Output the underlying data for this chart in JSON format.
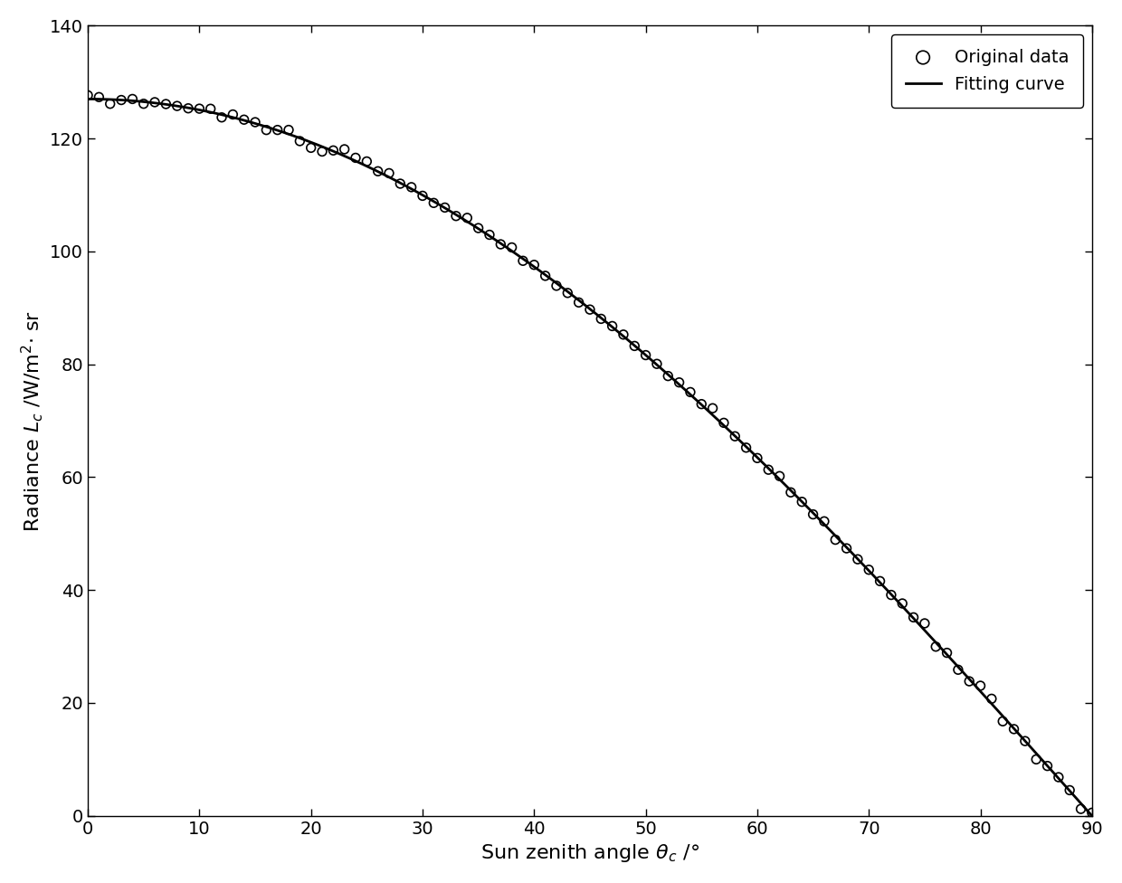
{
  "title": "",
  "xlabel": "Sun zenith angle $\\theta_c$ /°",
  "ylabel": "Radiance $L_c$ /W/m$^2$· sr",
  "xlim": [
    0,
    90
  ],
  "ylim": [
    0,
    140
  ],
  "xticks": [
    0,
    10,
    20,
    30,
    40,
    50,
    60,
    70,
    80,
    90
  ],
  "yticks": [
    0,
    20,
    40,
    60,
    80,
    100,
    120,
    140
  ],
  "scatter_marker": "o",
  "scatter_color": "none",
  "scatter_edgecolor": "black",
  "line_color": "black",
  "line_width": 2.0,
  "marker_size": 7,
  "marker_linewidth": 1.2,
  "legend_original": "Original data",
  "legend_fitting": "Fitting curve",
  "background_color": "#ffffff",
  "L0": 127.0,
  "scatter_noise_std": 0.5,
  "n_scatter": 91,
  "figsize": [
    12.4,
    9.76
  ],
  "dpi": 100
}
